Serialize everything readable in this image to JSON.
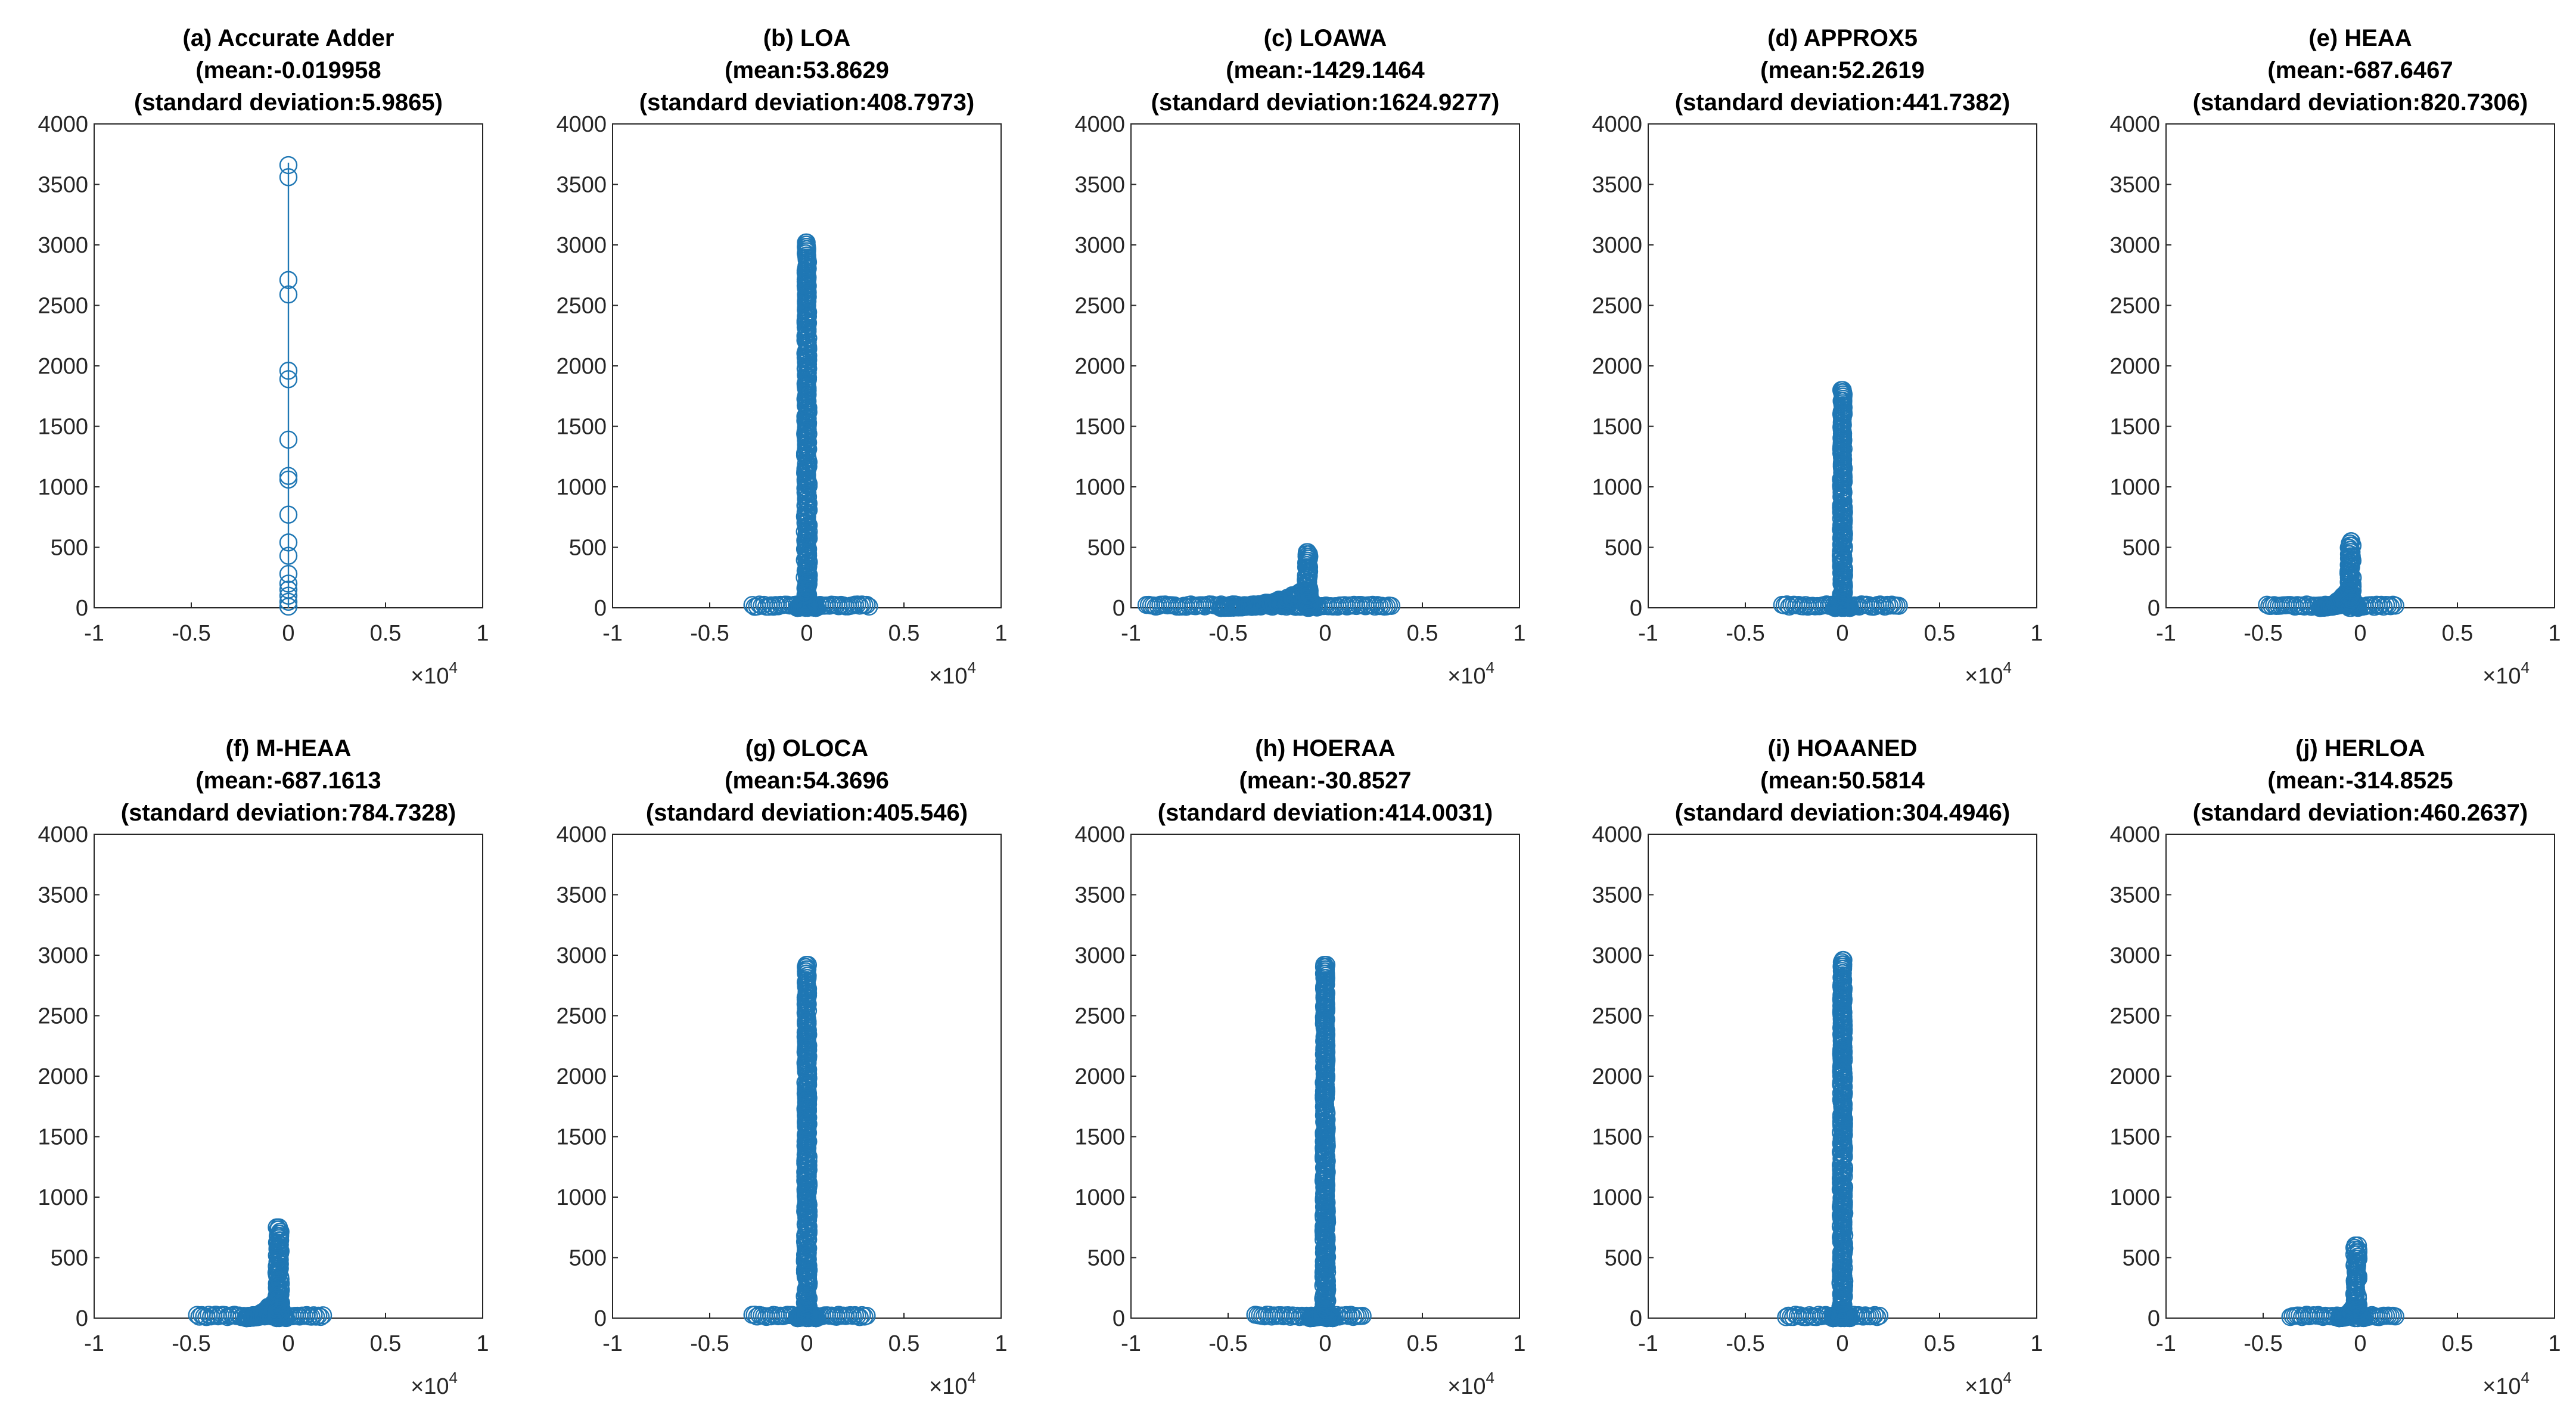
{
  "figure": {
    "marker_color": "#1f77b4",
    "axis_color": "#262626",
    "background": "#ffffff"
  },
  "chart_data": [
    {
      "type": "scatter",
      "panel": "a",
      "title": "(a) Accurate Adder",
      "mean_label": "(mean:-0.019958",
      "std_label": "(standard deviation:5.9865)",
      "xlim": [
        -10000,
        10000
      ],
      "ylim": [
        0,
        4000
      ],
      "xticks": [
        -1,
        -0.5,
        0,
        0.5,
        1
      ],
      "xtick_labels": [
        "-1",
        "-0.5",
        "0",
        "0.5",
        "1"
      ],
      "yticks": [
        0,
        500,
        1000,
        1500,
        2000,
        2500,
        3000,
        3500,
        4000
      ],
      "ytick_labels": [
        "0",
        "500",
        "1000",
        "1500",
        "2000",
        "2500",
        "3000",
        "3500",
        "4000"
      ],
      "x_exponent_base": "×10",
      "x_exponent_power": "4",
      "shape": "stem",
      "stem_height": 3680,
      "points": [
        {
          "x": 0,
          "y": 3660
        },
        {
          "x": 0,
          "y": 3560
        },
        {
          "x": 0,
          "y": 2710
        },
        {
          "x": 0,
          "y": 2590
        },
        {
          "x": 0,
          "y": 1960
        },
        {
          "x": 0,
          "y": 1890
        },
        {
          "x": 0,
          "y": 1390
        },
        {
          "x": 0,
          "y": 1090
        },
        {
          "x": 0,
          "y": 1060
        },
        {
          "x": 0,
          "y": 770
        },
        {
          "x": 0,
          "y": 540
        },
        {
          "x": 0,
          "y": 430
        },
        {
          "x": 0,
          "y": 280
        },
        {
          "x": 0,
          "y": 200
        },
        {
          "x": 0,
          "y": 150
        },
        {
          "x": 0,
          "y": 100
        },
        {
          "x": 0,
          "y": 50
        },
        {
          "x": 0,
          "y": 10
        }
      ]
    },
    {
      "type": "scatter",
      "panel": "b",
      "title": "(b) LOA",
      "mean_label": "(mean:53.8629",
      "std_label": "(standard deviation:408.7973)",
      "xlim": [
        -10000,
        10000
      ],
      "ylim": [
        0,
        4000
      ],
      "xticks": [
        -1,
        -0.5,
        0,
        0.5,
        1
      ],
      "xtick_labels": [
        "-1",
        "-0.5",
        "0",
        "0.5",
        "1"
      ],
      "yticks": [
        0,
        500,
        1000,
        1500,
        2000,
        2500,
        3000,
        3500,
        4000
      ],
      "ytick_labels": [
        "0",
        "500",
        "1000",
        "1500",
        "2000",
        "2500",
        "3000",
        "3500",
        "4000"
      ],
      "x_exponent_base": "×10",
      "x_exponent_power": "4",
      "shape": "spike",
      "peak_x": 0,
      "peak_y": 3020,
      "spike_width": 110,
      "spike_top_width": 60,
      "base_left": -2800,
      "base_right": 3200,
      "hump_left": 500,
      "hump_right": 500,
      "hump_height": 60
    },
    {
      "type": "scatter",
      "panel": "c",
      "title": "(c) LOAWA",
      "mean_label": "(mean:-1429.1464",
      "std_label": "(standard deviation:1624.9277)",
      "xlim": [
        -10000,
        10000
      ],
      "ylim": [
        0,
        4000
      ],
      "xticks": [
        -1,
        -0.5,
        0,
        0.5,
        1
      ],
      "xtick_labels": [
        "-1",
        "-0.5",
        "0",
        "0.5",
        "1"
      ],
      "yticks": [
        0,
        500,
        1000,
        1500,
        2000,
        2500,
        3000,
        3500,
        4000
      ],
      "ytick_labels": [
        "0",
        "500",
        "1000",
        "1500",
        "2000",
        "2500",
        "3000",
        "3500",
        "4000"
      ],
      "x_exponent_base": "×10",
      "x_exponent_power": "4",
      "shape": "spike",
      "peak_x": -900,
      "peak_y": 460,
      "spike_width": 120,
      "spike_top_width": 90,
      "base_left": -9200,
      "base_right": 3500,
      "hump_left": 4500,
      "hump_right": 600,
      "hump_height": 160
    },
    {
      "type": "scatter",
      "panel": "d",
      "title": "(d) APPROX5",
      "mean_label": "(mean:52.2619",
      "std_label": "(standard deviation:441.7382)",
      "xlim": [
        -10000,
        10000
      ],
      "ylim": [
        0,
        4000
      ],
      "xticks": [
        -1,
        -0.5,
        0,
        0.5,
        1
      ],
      "xtick_labels": [
        "-1",
        "-0.5",
        "0",
        "0.5",
        "1"
      ],
      "yticks": [
        0,
        500,
        1000,
        1500,
        2000,
        2500,
        3000,
        3500,
        4000
      ],
      "ytick_labels": [
        "0",
        "500",
        "1000",
        "1500",
        "2000",
        "2500",
        "3000",
        "3500",
        "4000"
      ],
      "x_exponent_base": "×10",
      "x_exponent_power": "4",
      "shape": "spike",
      "peak_x": 0,
      "peak_y": 1800,
      "spike_width": 100,
      "spike_top_width": 60,
      "base_left": -3100,
      "base_right": 3000,
      "hump_left": 400,
      "hump_right": 400,
      "hump_height": 60
    },
    {
      "type": "scatter",
      "panel": "e",
      "title": "(e) HEAA",
      "mean_label": "(mean:-687.6467",
      "std_label": "(standard deviation:820.7306)",
      "xlim": [
        -10000,
        10000
      ],
      "ylim": [
        0,
        4000
      ],
      "xticks": [
        -1,
        -0.5,
        0,
        0.5,
        1
      ],
      "xtick_labels": [
        "-1",
        "-0.5",
        "0",
        "0.5",
        "1"
      ],
      "yticks": [
        0,
        500,
        1000,
        1500,
        2000,
        2500,
        3000,
        3500,
        4000
      ],
      "ytick_labels": [
        "0",
        "500",
        "1000",
        "1500",
        "2000",
        "2500",
        "3000",
        "3500",
        "4000"
      ],
      "x_exponent_base": "×10",
      "x_exponent_power": "4",
      "shape": "spike",
      "peak_x": -500,
      "peak_y": 550,
      "spike_width": 130,
      "spike_top_width": 100,
      "base_left": -4800,
      "base_right": 1800,
      "hump_left": 1600,
      "hump_right": 400,
      "hump_height": 180
    },
    {
      "type": "scatter",
      "panel": "f",
      "title": "(f) M-HEAA",
      "mean_label": "(mean:-687.1613",
      "std_label": "(standard deviation:784.7328)",
      "xlim": [
        -10000,
        10000
      ],
      "ylim": [
        0,
        4000
      ],
      "xticks": [
        -1,
        -0.5,
        0,
        0.5,
        1
      ],
      "xtick_labels": [
        "-1",
        "-0.5",
        "0",
        "0.5",
        "1"
      ],
      "yticks": [
        0,
        500,
        1000,
        1500,
        2000,
        2500,
        3000,
        3500,
        4000
      ],
      "ytick_labels": [
        "0",
        "500",
        "1000",
        "1500",
        "2000",
        "2500",
        "3000",
        "3500",
        "4000"
      ],
      "x_exponent_base": "×10",
      "x_exponent_power": "4",
      "shape": "spike",
      "peak_x": -500,
      "peak_y": 750,
      "spike_width": 130,
      "spike_top_width": 100,
      "base_left": -4700,
      "base_right": 1800,
      "hump_left": 1700,
      "hump_right": 400,
      "hump_height": 200
    },
    {
      "type": "scatter",
      "panel": "g",
      "title": "(g) OLOCA",
      "mean_label": "(mean:54.3696",
      "std_label": "(standard deviation:405.546)",
      "xlim": [
        -10000,
        10000
      ],
      "ylim": [
        0,
        4000
      ],
      "xticks": [
        -1,
        -0.5,
        0,
        0.5,
        1
      ],
      "xtick_labels": [
        "-1",
        "-0.5",
        "0",
        "0.5",
        "1"
      ],
      "yticks": [
        0,
        500,
        1000,
        1500,
        2000,
        2500,
        3000,
        3500,
        4000
      ],
      "ytick_labels": [
        "0",
        "500",
        "1000",
        "1500",
        "2000",
        "2500",
        "3000",
        "3500",
        "4000"
      ],
      "x_exponent_base": "×10",
      "x_exponent_power": "4",
      "shape": "spike",
      "peak_x": 0,
      "peak_y": 2920,
      "spike_width": 110,
      "spike_top_width": 60,
      "base_left": -2800,
      "base_right": 3100,
      "hump_left": 500,
      "hump_right": 500,
      "hump_height": 70
    },
    {
      "type": "scatter",
      "panel": "h",
      "title": "(h) HOERAA",
      "mean_label": "(mean:-30.8527",
      "std_label": "(standard deviation:414.0031)",
      "xlim": [
        -10000,
        10000
      ],
      "ylim": [
        0,
        4000
      ],
      "xticks": [
        -1,
        -0.5,
        0,
        0.5,
        1
      ],
      "xtick_labels": [
        "-1",
        "-0.5",
        "0",
        "0.5",
        "1"
      ],
      "yticks": [
        0,
        500,
        1000,
        1500,
        2000,
        2500,
        3000,
        3500,
        4000
      ],
      "ytick_labels": [
        "0",
        "500",
        "1000",
        "1500",
        "2000",
        "2500",
        "3000",
        "3500",
        "4000"
      ],
      "x_exponent_base": "×10",
      "x_exponent_power": "4",
      "shape": "spike",
      "peak_x": 0,
      "peak_y": 2920,
      "spike_width": 110,
      "spike_top_width": 60,
      "base_left": -3600,
      "base_right": 2000,
      "hump_left": 800,
      "hump_right": 400,
      "hump_height": 90
    },
    {
      "type": "scatter",
      "panel": "i",
      "title": "(i) HOAANED",
      "mean_label": "(mean:50.5814",
      "std_label": "(standard deviation:304.4946)",
      "xlim": [
        -10000,
        10000
      ],
      "ylim": [
        0,
        4000
      ],
      "xticks": [
        -1,
        -0.5,
        0,
        0.5,
        1
      ],
      "xtick_labels": [
        "-1",
        "-0.5",
        "0",
        "0.5",
        "1"
      ],
      "yticks": [
        0,
        500,
        1000,
        1500,
        2000,
        2500,
        3000,
        3500,
        4000
      ],
      "ytick_labels": [
        "0",
        "500",
        "1000",
        "1500",
        "2000",
        "2500",
        "3000",
        "3500",
        "4000"
      ],
      "x_exponent_base": "×10",
      "x_exponent_power": "4",
      "shape": "spike",
      "peak_x": 0,
      "peak_y": 2960,
      "spike_width": 110,
      "spike_top_width": 60,
      "base_left": -2900,
      "base_right": 2000,
      "hump_left": 500,
      "hump_right": 400,
      "hump_height": 70
    },
    {
      "type": "scatter",
      "panel": "j",
      "title": "(j) HERLOA",
      "mean_label": "(mean:-314.8525",
      "std_label": "(standard deviation:460.2637)",
      "xlim": [
        -10000,
        10000
      ],
      "ylim": [
        0,
        4000
      ],
      "xticks": [
        -1,
        -0.5,
        0,
        0.5,
        1
      ],
      "xtick_labels": [
        "-1",
        "-0.5",
        "0",
        "0.5",
        "1"
      ],
      "yticks": [
        0,
        500,
        1000,
        1500,
        2000,
        2500,
        3000,
        3500,
        4000
      ],
      "ytick_labels": [
        "0",
        "500",
        "1000",
        "1500",
        "2000",
        "2500",
        "3000",
        "3500",
        "4000"
      ],
      "x_exponent_base": "×10",
      "x_exponent_power": "4",
      "shape": "spike",
      "peak_x": -200,
      "peak_y": 600,
      "spike_width": 130,
      "spike_top_width": 100,
      "base_left": -3600,
      "base_right": 1800,
      "hump_left": 900,
      "hump_right": 400,
      "hump_height": 140
    }
  ]
}
